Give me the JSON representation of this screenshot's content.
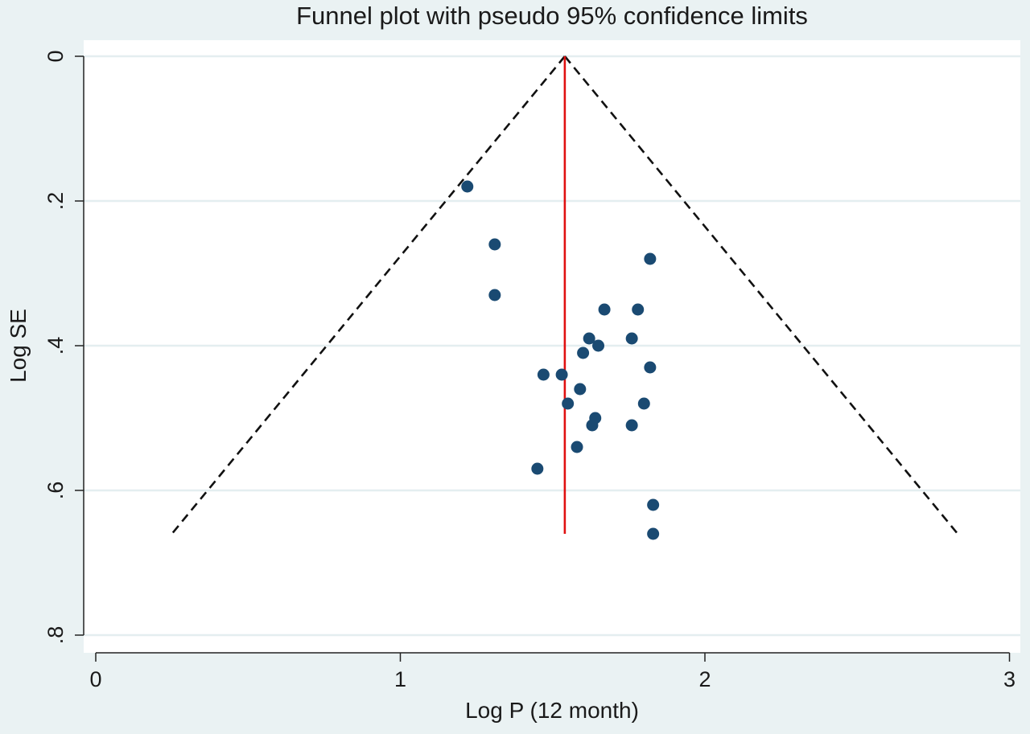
{
  "chart_data": {
    "type": "scatter",
    "title": "Funnel plot with pseudo 95% confidence limits",
    "xlabel": "Log P (12 month)",
    "ylabel": "Log SE",
    "xlim": [
      0,
      3
    ],
    "ylim": [
      0,
      0.8
    ],
    "y_reversed": true,
    "xticks": [
      {
        "value": 0,
        "label": "0"
      },
      {
        "value": 1,
        "label": "1"
      },
      {
        "value": 2,
        "label": "2"
      },
      {
        "value": 3,
        "label": "3"
      }
    ],
    "yticks": [
      {
        "value": 0,
        "label": "0"
      },
      {
        "value": 0.2,
        "label": ".2"
      },
      {
        "value": 0.4,
        "label": ".4"
      },
      {
        "value": 0.6,
        "label": ".6"
      },
      {
        "value": 0.8,
        "label": ".8"
      }
    ],
    "grid": {
      "horizontal": true,
      "vertical": false
    },
    "pooled_estimate": 1.54,
    "funnel_max_se": 0.66,
    "funnel_limits": {
      "apex": [
        1.54,
        0
      ],
      "left_base": [
        0.25,
        0.66
      ],
      "right_base": [
        2.83,
        0.66
      ]
    },
    "points": [
      {
        "x": 1.22,
        "y": 0.18
      },
      {
        "x": 1.31,
        "y": 0.26
      },
      {
        "x": 1.31,
        "y": 0.33
      },
      {
        "x": 1.82,
        "y": 0.28
      },
      {
        "x": 1.67,
        "y": 0.35
      },
      {
        "x": 1.78,
        "y": 0.35
      },
      {
        "x": 1.62,
        "y": 0.39
      },
      {
        "x": 1.76,
        "y": 0.39
      },
      {
        "x": 1.65,
        "y": 0.4
      },
      {
        "x": 1.6,
        "y": 0.41
      },
      {
        "x": 1.82,
        "y": 0.43
      },
      {
        "x": 1.47,
        "y": 0.44
      },
      {
        "x": 1.53,
        "y": 0.44
      },
      {
        "x": 1.59,
        "y": 0.46
      },
      {
        "x": 1.55,
        "y": 0.48
      },
      {
        "x": 1.8,
        "y": 0.48
      },
      {
        "x": 1.64,
        "y": 0.5
      },
      {
        "x": 1.63,
        "y": 0.51
      },
      {
        "x": 1.76,
        "y": 0.51
      },
      {
        "x": 1.58,
        "y": 0.54
      },
      {
        "x": 1.45,
        "y": 0.57
      },
      {
        "x": 1.83,
        "y": 0.62
      },
      {
        "x": 1.83,
        "y": 0.66
      }
    ],
    "colors": {
      "background": "#eaf2f3",
      "plot_background": "#ffffff",
      "gridline": "#e4eef0",
      "points": "#1a4a72",
      "pooled_line": "#e01010",
      "funnel_lines": "#111111",
      "axis": "#222222"
    }
  }
}
